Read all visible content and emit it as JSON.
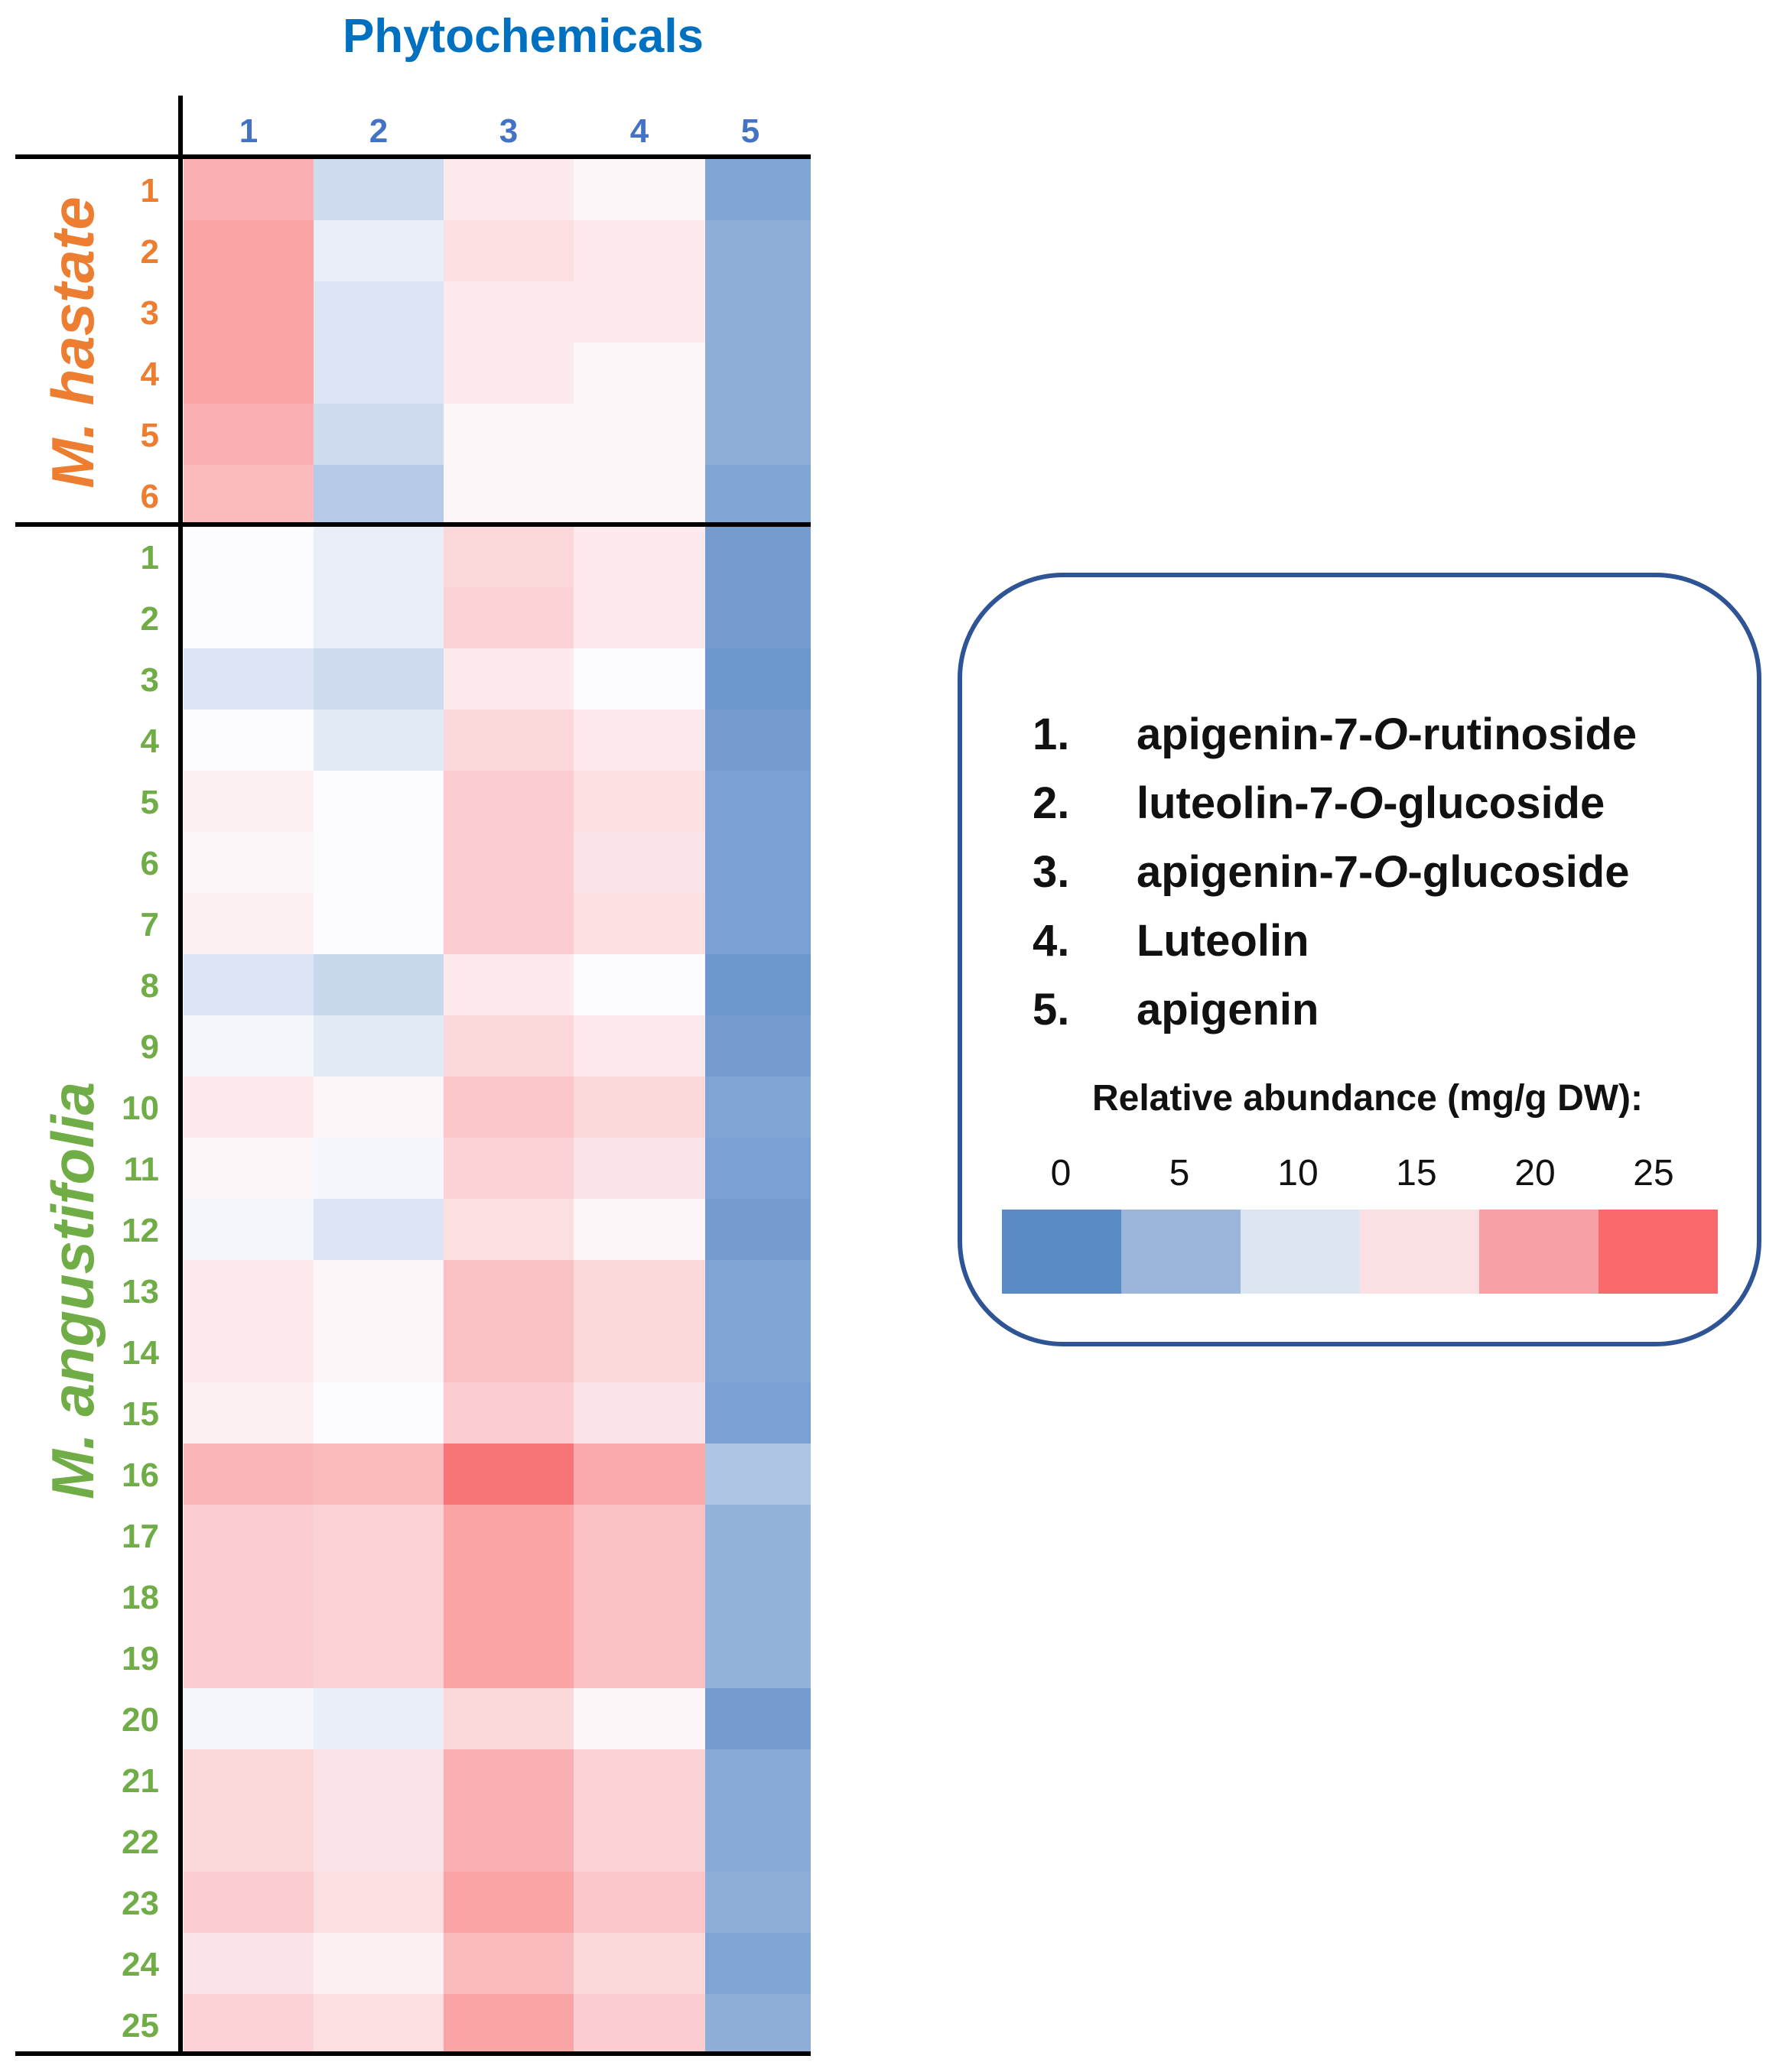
{
  "chart_data": {
    "type": "heatmap",
    "title": "Phytochemicals",
    "columns": [
      "1",
      "2",
      "3",
      "4",
      "5"
    ],
    "groups": [
      {
        "name": "M. hastate",
        "color": "#ed7d31",
        "rows": [
          "1",
          "2",
          "3",
          "4",
          "5",
          "6"
        ],
        "values": [
          [
            19,
            9,
            14,
            13,
            3
          ],
          [
            20,
            11,
            15,
            14,
            4
          ],
          [
            20,
            10,
            14,
            14,
            4
          ],
          [
            20,
            10,
            14,
            13,
            4
          ],
          [
            19,
            9,
            13,
            13,
            4
          ],
          [
            18,
            7,
            13,
            13,
            3
          ]
        ]
      },
      {
        "name": "M. angustifolia",
        "color": "#70ad47",
        "rows": [
          "1",
          "2",
          "3",
          "4",
          "5",
          "6",
          "7",
          "8",
          "9",
          "10",
          "11",
          "12",
          "13",
          "14",
          "15",
          "16",
          "17",
          "18",
          "19",
          "20",
          "21",
          "22",
          "23",
          "24",
          "25"
        ],
        "values": [
          [
            12.5,
            11,
            15.5,
            14,
            2
          ],
          [
            12.5,
            11,
            16,
            14,
            2
          ],
          [
            10,
            9,
            14,
            12.5,
            1.5
          ],
          [
            12.5,
            10.5,
            15.5,
            14,
            2
          ],
          [
            13.5,
            12.5,
            16.5,
            15,
            2.5
          ],
          [
            13,
            12.5,
            16.5,
            14.5,
            2.5
          ],
          [
            13.5,
            12.5,
            16.5,
            15,
            2.5
          ],
          [
            10,
            8.5,
            14,
            12.5,
            1.5
          ],
          [
            12,
            10.5,
            15.5,
            14,
            2
          ],
          [
            14,
            13,
            17,
            15.5,
            3
          ],
          [
            13,
            12,
            16,
            14.5,
            2.5
          ],
          [
            12,
            10,
            15,
            13,
            2
          ],
          [
            14,
            13,
            17.5,
            15.5,
            3
          ],
          [
            14,
            13,
            17.5,
            15.5,
            3
          ],
          [
            13.5,
            12.5,
            16.5,
            14.5,
            2.5
          ],
          [
            18.5,
            18,
            24,
            19.5,
            6.5
          ],
          [
            16.5,
            16,
            20,
            17.5,
            4.5
          ],
          [
            16.5,
            16,
            20,
            17.5,
            4.5
          ],
          [
            16.5,
            16,
            20,
            17.5,
            4.5
          ],
          [
            12,
            11,
            15.5,
            13,
            2
          ],
          [
            15.5,
            14.5,
            19,
            16,
            3.5
          ],
          [
            15.5,
            14.5,
            19,
            16,
            3.5
          ],
          [
            16.5,
            15,
            20,
            17,
            4
          ],
          [
            14.5,
            13.5,
            18,
            15.5,
            3
          ],
          [
            16,
            15,
            20,
            16.5,
            4
          ]
        ]
      }
    ],
    "legend": {
      "items": [
        {
          "num": "1.",
          "parts": [
            "apigenin-7-",
            "O",
            "-rutinoside"
          ]
        },
        {
          "num": "2.",
          "parts": [
            "luteolin-7-",
            "O",
            "-glucoside"
          ]
        },
        {
          "num": "3.",
          "parts": [
            "apigenin-7-",
            "O",
            "-glucoside"
          ]
        },
        {
          "num": "4.",
          "parts": [
            "Luteolin",
            "",
            ""
          ]
        },
        {
          "num": "5.",
          "parts": [
            "apigenin",
            "",
            ""
          ]
        }
      ],
      "scale_title": "Relative abundance (mg/g DW):",
      "scale_ticks": [
        "0",
        "5",
        "10",
        "15",
        "20",
        "25"
      ],
      "scale_colors": [
        "#5b8bc5",
        "#9bb5dc",
        "#dce5f2",
        "#fbe0e3",
        "#f8a1a4",
        "#f8696b"
      ],
      "vmin": 0,
      "vmax": 25
    },
    "colors": {
      "title": "#0070c0",
      "col_ticks": "#4472c4",
      "low": "#5a8ac6",
      "mid": "#fcfcff",
      "high": "#f8696b",
      "frame": "#2f5496"
    }
  }
}
